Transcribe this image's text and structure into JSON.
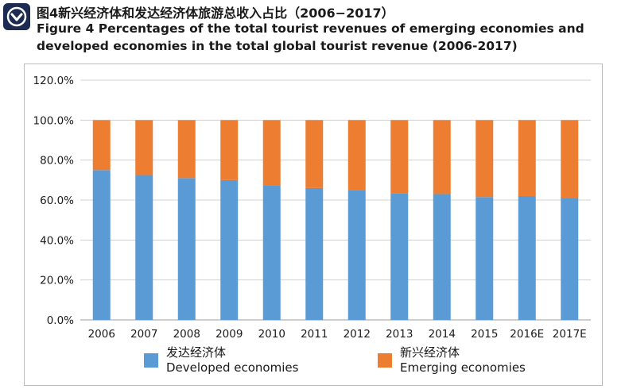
{
  "header": {
    "title_cn": "图4新兴经济体和发达经济体旅游总收入占比（2006−2017）",
    "title_en": "Figure 4 Percentages of the total tourist revenues of emerging economies and developed economies in the total global tourist revenue (2006-2017)",
    "logo_icon": "check-chevron-icon"
  },
  "chart_data": {
    "type": "bar",
    "stacked": true,
    "categories": [
      "2006",
      "2007",
      "2008",
      "2009",
      "2010",
      "2011",
      "2012",
      "2013",
      "2014",
      "2015",
      "2016E",
      "2017E"
    ],
    "series": [
      {
        "name": "发达经济体 Developed economies",
        "name_cn": "发达经济体",
        "name_en": "Developed economies",
        "color": "#5b9bd5",
        "values": [
          75.0,
          72.5,
          71.0,
          70.0,
          67.5,
          66.0,
          65.0,
          63.5,
          63.0,
          61.5,
          62.0,
          61.0
        ]
      },
      {
        "name": "新兴经济体 Emerging economies",
        "name_cn": "新兴经济体",
        "name_en": "Emerging economies",
        "color": "#ed7d31",
        "values": [
          25.0,
          27.5,
          29.0,
          30.0,
          32.5,
          34.0,
          35.0,
          36.5,
          37.0,
          38.5,
          38.0,
          39.0
        ]
      }
    ],
    "yticks": [
      "0.0%",
      "20.0%",
      "40.0%",
      "60.0%",
      "80.0%",
      "100.0%",
      "120.0%"
    ],
    "ylim": [
      0,
      120
    ],
    "grid": true,
    "legend_position": "bottom",
    "xlabel": "",
    "ylabel": ""
  }
}
